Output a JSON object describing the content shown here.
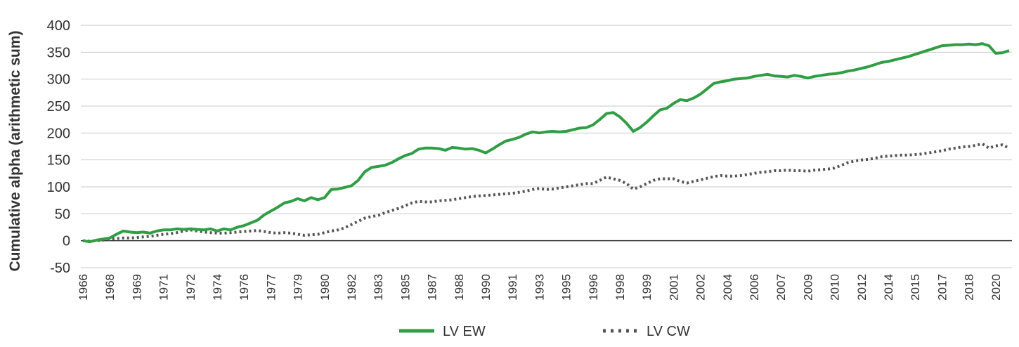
{
  "chart_data": {
    "type": "line",
    "y_label": "Cumulative alpha (arithmetic sum)",
    "categories": [
      "1966",
      null,
      null,
      null,
      "1968",
      null,
      null,
      null,
      "1969",
      null,
      null,
      null,
      "1971",
      null,
      null,
      null,
      "1972",
      null,
      null,
      null,
      "1974",
      null,
      null,
      null,
      "1976",
      null,
      null,
      null,
      "1977",
      null,
      null,
      null,
      "1979",
      null,
      null,
      null,
      "1980",
      null,
      null,
      null,
      "1982",
      null,
      null,
      null,
      "1983",
      null,
      null,
      null,
      "1985",
      null,
      null,
      null,
      "1987",
      null,
      null,
      null,
      "1988",
      null,
      null,
      null,
      "1990",
      null,
      null,
      null,
      "1991",
      null,
      null,
      null,
      "1993",
      null,
      null,
      null,
      "1995",
      null,
      null,
      null,
      "1996",
      null,
      null,
      null,
      "1998",
      null,
      null,
      null,
      "1999",
      null,
      null,
      null,
      "2001",
      null,
      null,
      null,
      "2002",
      null,
      null,
      null,
      "2004",
      null,
      null,
      null,
      "2006",
      null,
      null,
      null,
      "2007",
      null,
      null,
      null,
      "2009",
      null,
      null,
      null,
      "2010",
      null,
      null,
      null,
      "2012",
      null,
      null,
      null,
      "2014",
      null,
      null,
      null,
      "2015",
      null,
      null,
      null,
      "2017",
      null,
      null,
      null,
      "2018",
      null,
      null,
      null,
      "2020",
      null,
      null
    ],
    "series": [
      {
        "name": "LV EW",
        "color": "#2f9e44",
        "dash": false,
        "values": [
          0,
          -2,
          1,
          3,
          5,
          12,
          18,
          16,
          15,
          16,
          14,
          18,
          20,
          20,
          22,
          21,
          22,
          21,
          20,
          22,
          18,
          22,
          20,
          25,
          28,
          33,
          38,
          48,
          55,
          62,
          70,
          73,
          78,
          74,
          80,
          76,
          80,
          95,
          96,
          99,
          102,
          112,
          128,
          136,
          138,
          140,
          145,
          152,
          158,
          162,
          170,
          172,
          172,
          171,
          168,
          173,
          172,
          170,
          171,
          168,
          163,
          170,
          178,
          185,
          188,
          192,
          198,
          202,
          200,
          202,
          203,
          202,
          203,
          206,
          209,
          210,
          215,
          225,
          236,
          238,
          230,
          218,
          203,
          210,
          220,
          232,
          243,
          246,
          255,
          262,
          260,
          265,
          272,
          282,
          292,
          295,
          297,
          300,
          301,
          302,
          305,
          307,
          309,
          306,
          305,
          304,
          307,
          305,
          302,
          305,
          307,
          309,
          310,
          312,
          315,
          317,
          320,
          323,
          327,
          331,
          333,
          336,
          339,
          342,
          346,
          350,
          354,
          358,
          362,
          363,
          364,
          364,
          365,
          364,
          366,
          362,
          348,
          349,
          353
        ]
      },
      {
        "name": "LV CW",
        "color": "#555555",
        "dash": true,
        "values": [
          0,
          -1,
          0,
          1,
          3,
          4,
          5,
          5,
          6,
          7,
          8,
          10,
          12,
          13,
          15,
          18,
          20,
          18,
          16,
          15,
          14,
          14,
          15,
          16,
          17,
          18,
          19,
          17,
          15,
          14,
          15,
          14,
          12,
          10,
          11,
          12,
          15,
          18,
          20,
          24,
          30,
          36,
          42,
          45,
          47,
          52,
          56,
          60,
          65,
          70,
          73,
          72,
          72,
          74,
          75,
          76,
          78,
          80,
          82,
          83,
          84,
          85,
          86,
          87,
          88,
          90,
          92,
          95,
          97,
          95,
          96,
          98,
          100,
          102,
          104,
          106,
          106,
          112,
          118,
          115,
          112,
          106,
          96,
          100,
          106,
          112,
          115,
          115,
          115,
          110,
          107,
          110,
          113,
          116,
          119,
          121,
          120,
          120,
          121,
          123,
          125,
          127,
          128,
          130,
          130,
          131,
          130,
          130,
          129,
          131,
          132,
          133,
          135,
          140,
          145,
          148,
          150,
          151,
          153,
          156,
          157,
          158,
          159,
          159,
          160,
          161,
          163,
          165,
          167,
          170,
          172,
          174,
          175,
          177,
          180,
          172,
          176,
          178,
          172
        ]
      }
    ],
    "ylim": [
      -50,
      400
    ],
    "yticks": [
      -50,
      0,
      50,
      100,
      150,
      200,
      250,
      300,
      350,
      400
    ],
    "grid": true
  }
}
